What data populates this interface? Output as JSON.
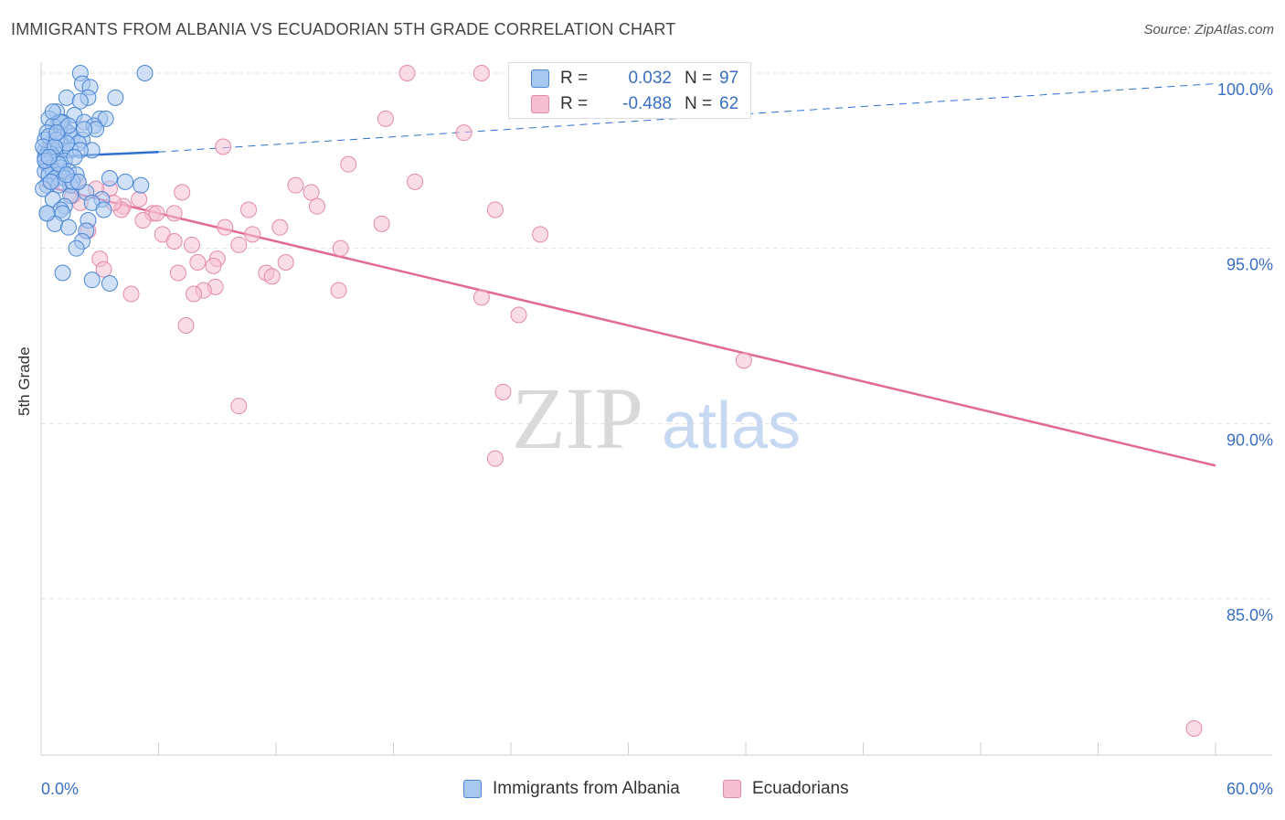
{
  "title": "IMMIGRANTS FROM ALBANIA VS ECUADORIAN 5TH GRADE CORRELATION CHART",
  "source": "Source: ZipAtlas.com",
  "watermark": {
    "zip": "ZIP",
    "atlas": "atlas"
  },
  "colors": {
    "albania_fill": "#a9c8f0",
    "albania_stroke": "#4a86d4",
    "albania_line": "#2f6fd0",
    "ecuador_fill": "#f6bfd1",
    "ecuador_stroke": "#e38aa9",
    "ecuador_line": "#e06a95",
    "tick_label": "#3a6fc4",
    "grid": "#e3e3e3"
  },
  "stats": {
    "row1": {
      "r_label": "R =",
      "r_value": "0.032",
      "n_label": "N =",
      "n_value": "97"
    },
    "row2": {
      "r_label": "R =",
      "r_value": "-0.488",
      "n_label": "N =",
      "n_value": "62"
    }
  },
  "legend": {
    "albania": "Immigrants from Albania",
    "ecuadorians": "Ecuadorians"
  },
  "chart_data": {
    "type": "scatter",
    "title": "IMMIGRANTS FROM ALBANIA VS ECUADORIAN 5TH GRADE CORRELATION CHART",
    "xlabel": "",
    "ylabel": "5th Grade",
    "xlim": [
      0,
      60
    ],
    "ylim": [
      80.5,
      100.8
    ],
    "x_tick_labels": [
      "0.0%",
      "60.0%"
    ],
    "y_ticks": [
      85,
      90,
      95,
      100
    ],
    "y_tick_labels": [
      "85.0%",
      "90.0%",
      "95.0%",
      "100.0%"
    ],
    "grid": true,
    "legend_position": "bottom",
    "series": [
      {
        "name": "Immigrants from Albania",
        "r": 0.032,
        "n": 97,
        "trend": {
          "x": [
            0,
            6
          ],
          "y": [
            97.6,
            97.75
          ],
          "dashed_extension_to": [
            60,
            99.7
          ]
        },
        "points": [
          [
            2.0,
            100.0
          ],
          [
            5.3,
            100.0
          ],
          [
            2.1,
            99.7
          ],
          [
            2.5,
            99.6
          ],
          [
            1.3,
            99.3
          ],
          [
            2.4,
            99.3
          ],
          [
            3.8,
            99.3
          ],
          [
            2.0,
            99.2
          ],
          [
            0.8,
            98.9
          ],
          [
            1.7,
            98.8
          ],
          [
            3.0,
            98.7
          ],
          [
            3.3,
            98.7
          ],
          [
            0.4,
            98.7
          ],
          [
            0.9,
            98.6
          ],
          [
            1.1,
            98.6
          ],
          [
            2.2,
            98.6
          ],
          [
            2.7,
            98.5
          ],
          [
            0.6,
            98.5
          ],
          [
            1.2,
            98.4
          ],
          [
            2.8,
            98.4
          ],
          [
            1.4,
            98.3
          ],
          [
            0.3,
            98.3
          ],
          [
            1.6,
            98.2
          ],
          [
            2.1,
            98.1
          ],
          [
            0.5,
            98.0
          ],
          [
            1.0,
            98.0
          ],
          [
            1.9,
            98.0
          ],
          [
            2.6,
            97.8
          ],
          [
            0.2,
            97.8
          ],
          [
            0.4,
            97.8
          ],
          [
            0.7,
            97.8
          ],
          [
            1.1,
            97.8
          ],
          [
            1.5,
            97.8
          ],
          [
            2.0,
            97.8
          ],
          [
            0.3,
            97.7
          ],
          [
            0.5,
            97.7
          ],
          [
            0.2,
            97.6
          ],
          [
            0.6,
            97.6
          ],
          [
            0.8,
            97.5
          ],
          [
            1.2,
            97.5
          ],
          [
            0.3,
            97.4
          ],
          [
            0.5,
            97.3
          ],
          [
            1.0,
            97.3
          ],
          [
            1.4,
            97.2
          ],
          [
            0.2,
            97.2
          ],
          [
            0.6,
            97.2
          ],
          [
            1.8,
            97.1
          ],
          [
            0.4,
            97.1
          ],
          [
            0.9,
            97.1
          ],
          [
            3.5,
            97.0
          ],
          [
            0.7,
            97.0
          ],
          [
            1.2,
            97.0
          ],
          [
            4.3,
            96.9
          ],
          [
            1.5,
            96.8
          ],
          [
            0.3,
            96.8
          ],
          [
            0.9,
            96.8
          ],
          [
            5.1,
            96.8
          ],
          [
            0.1,
            96.7
          ],
          [
            2.3,
            96.6
          ],
          [
            1.5,
            96.5
          ],
          [
            0.6,
            96.4
          ],
          [
            3.1,
            96.4
          ],
          [
            2.6,
            96.3
          ],
          [
            1.2,
            96.2
          ],
          [
            1.0,
            96.1
          ],
          [
            3.2,
            96.1
          ],
          [
            0.3,
            96.0
          ],
          [
            1.1,
            96.0
          ],
          [
            2.4,
            95.8
          ],
          [
            0.7,
            95.7
          ],
          [
            1.4,
            95.6
          ],
          [
            2.3,
            95.5
          ],
          [
            2.1,
            95.2
          ],
          [
            1.8,
            95.0
          ],
          [
            1.1,
            94.3
          ],
          [
            2.6,
            94.1
          ],
          [
            3.5,
            94.0
          ],
          [
            0.2,
            98.1
          ],
          [
            0.4,
            98.2
          ],
          [
            0.8,
            98.1
          ],
          [
            1.3,
            98.0
          ],
          [
            1.7,
            97.6
          ],
          [
            0.1,
            97.9
          ],
          [
            0.2,
            97.5
          ],
          [
            0.5,
            96.9
          ],
          [
            0.9,
            97.4
          ],
          [
            1.6,
            96.9
          ],
          [
            1.0,
            98.6
          ],
          [
            1.4,
            98.5
          ],
          [
            0.6,
            98.9
          ],
          [
            2.2,
            98.4
          ],
          [
            0.3,
            96.0
          ],
          [
            0.7,
            97.9
          ],
          [
            1.9,
            96.9
          ],
          [
            0.8,
            98.3
          ],
          [
            1.3,
            97.1
          ],
          [
            0.4,
            97.6
          ]
        ]
      },
      {
        "name": "Ecuadorians",
        "r": -0.488,
        "n": 62,
        "trend": {
          "x": [
            0,
            60
          ],
          "y": [
            96.8,
            88.8
          ]
        },
        "points": [
          [
            18.7,
            100.0
          ],
          [
            22.5,
            100.0
          ],
          [
            17.6,
            98.7
          ],
          [
            21.6,
            98.3
          ],
          [
            9.3,
            97.9
          ],
          [
            15.7,
            97.4
          ],
          [
            19.1,
            96.9
          ],
          [
            13.0,
            96.8
          ],
          [
            3.5,
            96.7
          ],
          [
            7.2,
            96.6
          ],
          [
            13.8,
            96.6
          ],
          [
            5.0,
            96.4
          ],
          [
            2.0,
            96.3
          ],
          [
            4.2,
            96.2
          ],
          [
            14.1,
            96.2
          ],
          [
            10.6,
            96.1
          ],
          [
            23.2,
            96.1
          ],
          [
            5.7,
            96.0
          ],
          [
            5.9,
            96.0
          ],
          [
            4.1,
            96.1
          ],
          [
            6.8,
            96.0
          ],
          [
            5.2,
            95.8
          ],
          [
            17.4,
            95.7
          ],
          [
            12.2,
            95.6
          ],
          [
            9.4,
            95.6
          ],
          [
            25.5,
            95.4
          ],
          [
            6.2,
            95.4
          ],
          [
            10.8,
            95.4
          ],
          [
            6.8,
            95.2
          ],
          [
            7.7,
            95.1
          ],
          [
            10.1,
            95.1
          ],
          [
            15.3,
            95.0
          ],
          [
            3.0,
            94.7
          ],
          [
            9.0,
            94.7
          ],
          [
            8.0,
            94.6
          ],
          [
            12.5,
            94.6
          ],
          [
            8.8,
            94.5
          ],
          [
            3.2,
            94.4
          ],
          [
            7.0,
            94.3
          ],
          [
            11.5,
            94.3
          ],
          [
            11.8,
            94.2
          ],
          [
            8.9,
            93.9
          ],
          [
            8.3,
            93.8
          ],
          [
            15.2,
            93.8
          ],
          [
            7.8,
            93.7
          ],
          [
            4.6,
            93.7
          ],
          [
            22.5,
            93.6
          ],
          [
            24.4,
            93.1
          ],
          [
            7.4,
            92.8
          ],
          [
            35.9,
            91.8
          ],
          [
            10.1,
            90.5
          ],
          [
            23.6,
            90.9
          ],
          [
            23.2,
            89.0
          ],
          [
            58.9,
            81.3
          ],
          [
            2.4,
            95.5
          ],
          [
            1.1,
            97.2
          ],
          [
            0.6,
            96.9
          ],
          [
            2.8,
            96.7
          ],
          [
            1.6,
            96.5
          ],
          [
            0.4,
            97.4
          ],
          [
            1.9,
            96.9
          ],
          [
            3.7,
            96.3
          ]
        ]
      }
    ]
  }
}
